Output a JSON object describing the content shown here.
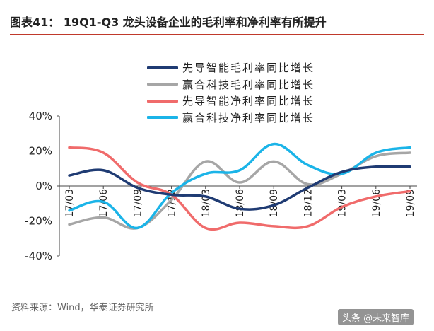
{
  "header": {
    "title": "图表41：  19Q1-Q3 龙头设备企业的毛利率和净利率有所提升"
  },
  "footer": {
    "source": "资料来源：Wind，华泰证券研究所",
    "watermark": "头条 @未来智库"
  },
  "colors": {
    "rule": "#c0392b",
    "axis": "#444444"
  },
  "chart_data": {
    "type": "line",
    "title": "",
    "xlabel": "",
    "ylabel": "",
    "ylim": [
      -40,
      40
    ],
    "yticks": [
      "40%",
      "20%",
      "0%",
      "-20%",
      "-40%"
    ],
    "ytick_values": [
      40,
      20,
      0,
      -20,
      -40
    ],
    "x": [
      "17/03",
      "17/06",
      "17/09",
      "17/12",
      "18/03",
      "18/06",
      "18/09",
      "18/12",
      "19/03",
      "19/06",
      "19/09"
    ],
    "legend_position": "top",
    "series": [
      {
        "name": "先导智能毛利率同比增长",
        "color": "#1f3b73",
        "values": [
          6,
          9,
          -1,
          -5,
          -6,
          -13,
          -11,
          -1,
          8,
          11,
          11
        ]
      },
      {
        "name": "赢合科技毛利率同比增长",
        "color": "#a6a6a6",
        "values": [
          -22,
          -18,
          -24,
          -8,
          14,
          2,
          14,
          1,
          7,
          17,
          19
        ]
      },
      {
        "name": "先导智能净利率同比增长",
        "color": "#f06b6b",
        "values": [
          22,
          19,
          2,
          -5,
          -24,
          -21,
          -23,
          -23,
          -12,
          -6,
          -3
        ]
      },
      {
        "name": "赢合科技净利率同比增长",
        "color": "#1bb4e8",
        "values": [
          -14,
          -9,
          -24,
          -4,
          7,
          9,
          24,
          12,
          7,
          19,
          22
        ]
      }
    ]
  }
}
